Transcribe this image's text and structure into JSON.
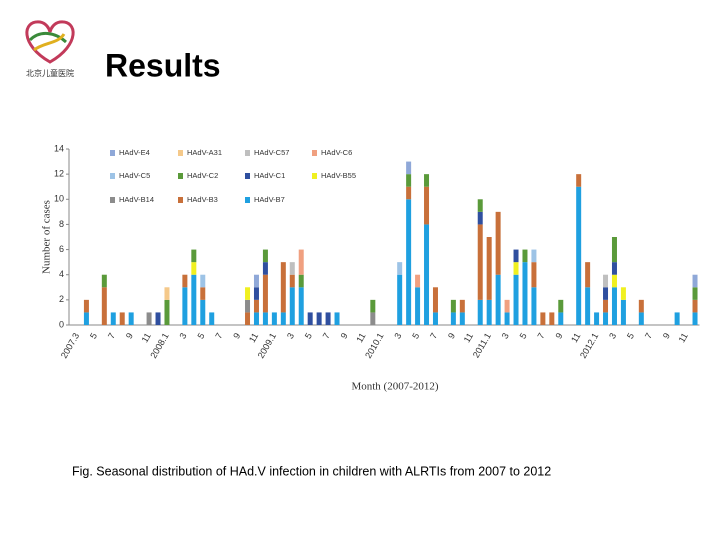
{
  "header": {
    "title": "Results",
    "logo_text": "北京儿童医院"
  },
  "chart_data": {
    "type": "stacked_bar",
    "ylabel": "Number of cases",
    "xlabel": "Month (2007-2012)",
    "ylim": [
      0,
      14
    ],
    "yticks": [
      0,
      2,
      4,
      6,
      8,
      10,
      12,
      14
    ],
    "categories": [
      "2007.3",
      null,
      "5",
      null,
      "7",
      null,
      "9",
      null,
      "11",
      null,
      "2008.1",
      null,
      "3",
      null,
      "5",
      null,
      "7",
      null,
      "9",
      null,
      "11",
      null,
      "2009.1",
      null,
      "3",
      null,
      "5",
      null,
      "7",
      null,
      "9",
      null,
      "11",
      null,
      "2010.1",
      null,
      "3",
      null,
      "5",
      null,
      "7",
      null,
      "9",
      null,
      "11",
      null,
      "2011.1",
      null,
      "3",
      null,
      "5",
      null,
      "7",
      null,
      "9",
      null,
      "11",
      null,
      "2012.1",
      null,
      "3",
      null,
      "5",
      null,
      "7",
      null,
      "9",
      null,
      "11",
      null
    ],
    "series": [
      {
        "name": "HAdV-E4",
        "color": "#8fa8d8",
        "values": [
          0,
          0,
          0,
          0,
          0,
          0,
          0,
          0,
          0,
          0,
          0,
          0,
          0,
          0,
          0,
          0,
          0,
          0,
          0,
          0,
          1,
          0,
          0,
          0,
          0,
          0,
          0,
          0,
          0,
          0,
          0,
          0,
          0,
          0,
          0,
          0,
          0,
          1,
          0,
          0,
          0,
          0,
          0,
          0,
          0,
          0,
          0,
          0,
          0,
          0,
          0,
          0,
          0,
          0,
          0,
          0,
          0,
          0,
          0,
          0,
          0,
          0,
          0,
          0,
          0,
          0,
          0,
          0,
          0,
          1
        ]
      },
      {
        "name": "HAdV-A31",
        "color": "#f5c98a",
        "values": [
          0,
          0,
          0,
          0,
          0,
          0,
          0,
          0,
          0,
          0,
          1,
          0,
          0,
          0,
          0,
          0,
          0,
          0,
          0,
          0,
          0,
          0,
          0,
          0,
          0,
          0,
          0,
          0,
          0,
          0,
          0,
          0,
          0,
          0,
          0,
          0,
          0,
          0,
          0,
          0,
          0,
          0,
          0,
          0,
          0,
          0,
          0,
          0,
          0,
          0,
          0,
          0,
          0,
          0,
          0,
          0,
          0,
          0,
          0,
          0,
          0,
          0,
          0,
          0,
          0,
          0,
          0,
          0,
          0,
          0
        ]
      },
      {
        "name": "HAdV-C57",
        "color": "#bfbfbf",
        "values": [
          0,
          0,
          0,
          0,
          0,
          0,
          0,
          0,
          0,
          0,
          0,
          0,
          0,
          0,
          0,
          0,
          0,
          0,
          0,
          0,
          0,
          0,
          0,
          0,
          1,
          0,
          0,
          0,
          0,
          0,
          0,
          0,
          0,
          0,
          0,
          0,
          0,
          0,
          0,
          0,
          0,
          0,
          0,
          0,
          0,
          0,
          0,
          0,
          0,
          0,
          0,
          0,
          0,
          0,
          0,
          0,
          0,
          0,
          0,
          1,
          0,
          0,
          0,
          0,
          0,
          0,
          0,
          0,
          0,
          0
        ]
      },
      {
        "name": "HAdV-C6",
        "color": "#f0a080",
        "values": [
          0,
          0,
          0,
          0,
          0,
          0,
          0,
          0,
          0,
          0,
          0,
          0,
          0,
          0,
          0,
          0,
          0,
          0,
          0,
          0,
          0,
          0,
          0,
          0,
          0,
          2,
          0,
          0,
          0,
          0,
          0,
          0,
          0,
          0,
          0,
          0,
          0,
          0,
          1,
          0,
          0,
          0,
          0,
          0,
          0,
          0,
          0,
          0,
          1,
          0,
          0,
          0,
          0,
          0,
          0,
          0,
          0,
          0,
          0,
          0,
          0,
          0,
          0,
          0,
          0,
          0,
          0,
          0,
          0,
          0
        ]
      },
      {
        "name": "HAdV-C5",
        "color": "#9dc3e6",
        "values": [
          0,
          0,
          0,
          0,
          0,
          0,
          0,
          0,
          0,
          0,
          0,
          0,
          0,
          0,
          1,
          0,
          0,
          0,
          0,
          0,
          0,
          0,
          0,
          0,
          0,
          0,
          0,
          0,
          0,
          0,
          0,
          0,
          0,
          0,
          0,
          0,
          1,
          0,
          0,
          0,
          0,
          0,
          0,
          0,
          0,
          0,
          0,
          0,
          0,
          0,
          0,
          1,
          0,
          0,
          0,
          0,
          0,
          0,
          0,
          0,
          0,
          0,
          0,
          0,
          0,
          0,
          0,
          0,
          0,
          0
        ]
      },
      {
        "name": "HAdV-C2",
        "color": "#5a9a3a",
        "values": [
          0,
          0,
          0,
          1,
          0,
          0,
          0,
          0,
          0,
          0,
          2,
          0,
          0,
          1,
          0,
          0,
          0,
          0,
          0,
          0,
          0,
          1,
          0,
          0,
          0,
          1,
          0,
          0,
          0,
          0,
          0,
          0,
          0,
          1,
          0,
          0,
          0,
          1,
          0,
          1,
          0,
          0,
          1,
          0,
          0,
          1,
          0,
          0,
          0,
          0,
          1,
          0,
          0,
          0,
          1,
          0,
          0,
          0,
          0,
          0,
          2,
          0,
          0,
          0,
          0,
          0,
          0,
          0,
          0,
          1
        ]
      },
      {
        "name": "HAdV-C1",
        "color": "#2f4f9f",
        "values": [
          0,
          0,
          0,
          0,
          0,
          0,
          0,
          0,
          0,
          1,
          0,
          0,
          0,
          0,
          0,
          0,
          0,
          0,
          0,
          0,
          1,
          1,
          0,
          0,
          0,
          0,
          1,
          1,
          1,
          0,
          0,
          0,
          0,
          0,
          0,
          0,
          0,
          0,
          0,
          0,
          0,
          0,
          0,
          0,
          0,
          1,
          0,
          0,
          0,
          1,
          0,
          0,
          0,
          0,
          0,
          0,
          0,
          0,
          0,
          1,
          1,
          0,
          0,
          0,
          0,
          0,
          0,
          0,
          0,
          0
        ]
      },
      {
        "name": "HAdV-B55",
        "color": "#f0f020",
        "values": [
          0,
          0,
          0,
          0,
          0,
          0,
          0,
          0,
          0,
          0,
          0,
          0,
          0,
          1,
          0,
          0,
          0,
          0,
          0,
          1,
          0,
          0,
          0,
          0,
          0,
          0,
          0,
          0,
          0,
          0,
          0,
          0,
          0,
          0,
          0,
          0,
          0,
          0,
          0,
          0,
          0,
          0,
          0,
          0,
          0,
          0,
          0,
          0,
          0,
          1,
          0,
          0,
          0,
          0,
          0,
          0,
          0,
          0,
          0,
          0,
          1,
          1,
          0,
          0,
          0,
          0,
          0,
          0,
          0,
          0
        ]
      },
      {
        "name": "HAdV-B14",
        "color": "#8c8c8c",
        "values": [
          0,
          0,
          0,
          0,
          0,
          0,
          0,
          0,
          1,
          0,
          0,
          0,
          0,
          0,
          0,
          0,
          0,
          0,
          0,
          1,
          0,
          0,
          0,
          0,
          0,
          0,
          0,
          0,
          0,
          0,
          0,
          0,
          0,
          1,
          0,
          0,
          0,
          0,
          0,
          0,
          0,
          0,
          0,
          0,
          0,
          0,
          0,
          0,
          0,
          0,
          0,
          0,
          0,
          0,
          0,
          0,
          0,
          0,
          0,
          0,
          0,
          0,
          0,
          0,
          0,
          0,
          0,
          0,
          0,
          0
        ]
      },
      {
        "name": "HAdV-B3",
        "color": "#c8703a",
        "values": [
          0,
          1,
          0,
          3,
          0,
          1,
          0,
          0,
          0,
          0,
          0,
          0,
          1,
          0,
          1,
          0,
          0,
          0,
          0,
          1,
          1,
          3,
          0,
          4,
          1,
          0,
          0,
          0,
          0,
          0,
          0,
          0,
          0,
          0,
          0,
          0,
          0,
          1,
          0,
          3,
          2,
          0,
          0,
          1,
          0,
          6,
          5,
          5,
          0,
          0,
          0,
          2,
          1,
          1,
          0,
          0,
          1,
          2,
          0,
          1,
          0,
          0,
          0,
          1,
          0,
          0,
          0,
          0,
          0,
          1
        ]
      },
      {
        "name": "HAdV-B7",
        "color": "#1fa0e0",
        "values": [
          0,
          1,
          0,
          0,
          1,
          0,
          1,
          0,
          0,
          0,
          0,
          0,
          3,
          4,
          2,
          1,
          0,
          0,
          0,
          0,
          1,
          1,
          1,
          1,
          3,
          3,
          0,
          0,
          0,
          1,
          0,
          0,
          0,
          0,
          0,
          0,
          4,
          10,
          3,
          8,
          1,
          0,
          1,
          1,
          0,
          2,
          2,
          4,
          1,
          4,
          5,
          3,
          0,
          0,
          1,
          0,
          11,
          3,
          1,
          1,
          3,
          2,
          0,
          1,
          0,
          0,
          0,
          1,
          0,
          1
        ]
      }
    ]
  },
  "caption": "Fig. Seasonal distribution of HAd.V infection in children with ALRTIs from 2007 to 2012"
}
